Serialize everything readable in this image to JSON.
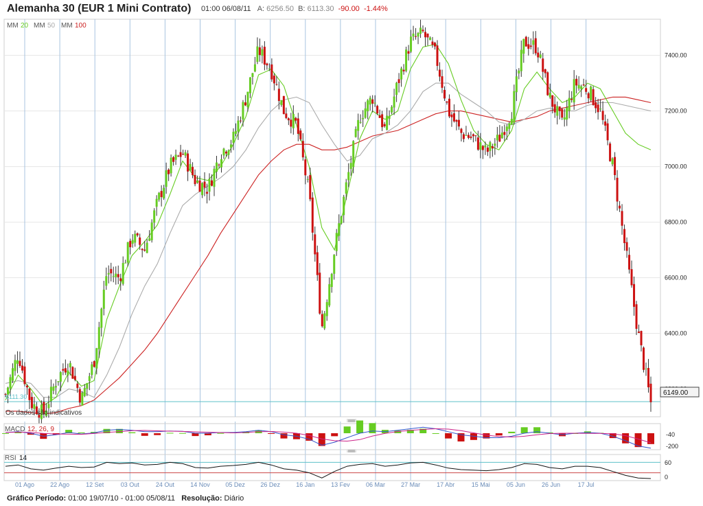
{
  "header": {
    "title": "Alemanha 30 (EUR 1 Mini Contrato)",
    "datetime": "01:00 06/08/11",
    "ask_label": "A:",
    "ask": "6256.50",
    "bid_label": "B:",
    "bid": "6113.30",
    "change": "-90.00",
    "change_pct": "-1.44%"
  },
  "legend": {
    "ma20_label": "MM",
    "ma20_period": "20",
    "ma20_color": "#66cc22",
    "ma50_label": "MM",
    "ma50_period": "50",
    "ma50_color": "#aaaaaa",
    "ma100_label": "MM",
    "ma100_period": "100",
    "ma100_color": "#cc2222"
  },
  "notice": "Os dados são indicativos",
  "low_label": "6111.30",
  "last_price": "6149.00",
  "macd": {
    "label": "MACD",
    "params": "12, 26, 9",
    "ticks": [
      "-40",
      "-200"
    ]
  },
  "rsi": {
    "label": "RSI",
    "period": "14",
    "ticks": [
      "60",
      "0"
    ]
  },
  "footer": {
    "period_label": "Gráfico Período:",
    "period_value": "01:00 19/07/10 - 01:00 05/08/11",
    "resolution_label": "Resolução:",
    "resolution_value": "Diário"
  },
  "colors": {
    "up": "#66cc22",
    "down": "#cc1111",
    "grid": "#a8c4e0",
    "rsi_line": "#111111"
  },
  "chart_data": {
    "type": "candlestick",
    "title": "Alemanha 30 (EUR 1 Mini Contrato)",
    "resolution": "Diário",
    "y_ticks": [
      6200,
      6400,
      6600,
      6800,
      7000,
      7200,
      7400
    ],
    "y_range": [
      6100,
      7530
    ],
    "x_tick_labels": [
      "01 Ago",
      "22 Ago",
      "12 Set",
      "03 Out",
      "24 Out",
      "14 Nov",
      "05 Dez",
      "26 Dez",
      "16 Jan",
      "13 Fev",
      "06 Mar",
      "27 Mar",
      "17 Abr",
      "15 Mai",
      "05 Jun",
      "26 Jun",
      "17 Jul"
    ],
    "close_path": [
      {
        "label": "19 Jul",
        "value": 6180
      },
      {
        "label": "01 Ago",
        "value": 6330
      },
      {
        "label": "11 Ago",
        "value": 6150
      },
      {
        "label": "22 Ago",
        "value": 6110
      },
      {
        "label": "12 Set",
        "value": 6230
      },
      {
        "label": "20 Set",
        "value": 6300
      },
      {
        "label": "03 Out",
        "value": 6160
      },
      {
        "label": "12 Out",
        "value": 6300
      },
      {
        "label": "24 Out",
        "value": 6620
      },
      {
        "label": "02 Nov",
        "value": 6600
      },
      {
        "label": "14 Nov",
        "value": 6750
      },
      {
        "label": "25 Nov",
        "value": 6700
      },
      {
        "label": "30 Nov",
        "value": 6870
      },
      {
        "label": "05 Dez",
        "value": 7000
      },
      {
        "label": "15 Dez",
        "value": 7050
      },
      {
        "label": "26 Dez",
        "value": 6950
      },
      {
        "label": "03 Jan",
        "value": 6920
      },
      {
        "label": "16 Jan",
        "value": 7050
      },
      {
        "label": "25 Jan",
        "value": 7100
      },
      {
        "label": "03 Fev",
        "value": 7250
      },
      {
        "label": "13 Fev",
        "value": 7420
      },
      {
        "label": "20 Fev",
        "value": 7350
      },
      {
        "label": "24 Fev",
        "value": 7200
      },
      {
        "label": "06 Mar",
        "value": 7150
      },
      {
        "label": "10 Mar",
        "value": 6900
      },
      {
        "label": "15 Mar",
        "value": 6420
      },
      {
        "label": "20 Mar",
        "value": 6700
      },
      {
        "label": "27 Mar",
        "value": 6950
      },
      {
        "label": "04 Abr",
        "value": 7180
      },
      {
        "label": "10 Abr",
        "value": 7250
      },
      {
        "label": "17 Abr",
        "value": 7130
      },
      {
        "label": "20 Abr",
        "value": 7300
      },
      {
        "label": "25 Abr",
        "value": 7450
      },
      {
        "label": "02 Mai",
        "value": 7480
      },
      {
        "label": "06 Mai",
        "value": 7400
      },
      {
        "label": "15 Mai",
        "value": 7200
      },
      {
        "label": "22 Mai",
        "value": 7120
      },
      {
        "label": "30 Mai",
        "value": 7100
      },
      {
        "label": "05 Jun",
        "value": 7050
      },
      {
        "label": "12 Jun",
        "value": 7100
      },
      {
        "label": "20 Jun",
        "value": 7200
      },
      {
        "label": "26 Jun",
        "value": 7450
      },
      {
        "label": "01 Jul",
        "value": 7430
      },
      {
        "label": "06 Jul",
        "value": 7250
      },
      {
        "label": "12 Jul",
        "value": 7150
      },
      {
        "label": "17 Jul",
        "value": 7300
      },
      {
        "label": "22 Jul",
        "value": 7280
      },
      {
        "label": "26 Jul",
        "value": 7200
      },
      {
        "label": "28 Jul",
        "value": 7000
      },
      {
        "label": "30 Jul",
        "value": 6700
      },
      {
        "label": "02 Ago",
        "value": 6400
      },
      {
        "label": "05 Ago",
        "value": 6149
      }
    ],
    "series": [
      {
        "name": "MM 20",
        "values": [
          6160,
          6250,
          6200,
          6140,
          6170,
          6260,
          6210,
          6230,
          6450,
          6570,
          6680,
          6730,
          6790,
          6900,
          7020,
          6960,
          6950,
          7000,
          7080,
          7180,
          7330,
          7350,
          7290,
          7150,
          7000,
          6780,
          6700,
          6900,
          7100,
          7200,
          7170,
          7200,
          7350,
          7430,
          7440,
          7370,
          7240,
          7130,
          7080,
          7060,
          7130,
          7280,
          7340,
          7280,
          7230,
          7250,
          7300,
          7280,
          7200,
          7120,
          7080,
          7060
        ]
      },
      {
        "name": "MM 50",
        "values": [
          6220,
          6230,
          6220,
          6170,
          6170,
          6200,
          6190,
          6170,
          6250,
          6350,
          6470,
          6570,
          6650,
          6760,
          6860,
          6900,
          6930,
          6960,
          7000,
          7060,
          7140,
          7200,
          7240,
          7250,
          7230,
          7150,
          7080,
          7020,
          7040,
          7100,
          7120,
          7150,
          7200,
          7270,
          7300,
          7300,
          7260,
          7230,
          7200,
          7160,
          7150,
          7170,
          7200,
          7210,
          7200,
          7200,
          7220,
          7230,
          7230,
          7220,
          7210,
          7200
        ]
      },
      {
        "name": "MM 100",
        "values": [
          6120,
          6120,
          6115,
          6110,
          6115,
          6130,
          6140,
          6160,
          6200,
          6240,
          6290,
          6340,
          6400,
          6470,
          6540,
          6610,
          6680,
          6760,
          6830,
          6900,
          6970,
          7020,
          7060,
          7080,
          7080,
          7060,
          7060,
          7070,
          7090,
          7110,
          7120,
          7130,
          7150,
          7170,
          7190,
          7200,
          7200,
          7190,
          7180,
          7170,
          7160,
          7170,
          7180,
          7200,
          7210,
          7220,
          7230,
          7240,
          7250,
          7250,
          7240,
          7230
        ]
      }
    ],
    "macd": {
      "name": "MACD 12, 26, 9",
      "values": [
        10,
        20,
        0,
        -40,
        -20,
        10,
        -10,
        5,
        40,
        50,
        40,
        20,
        20,
        30,
        25,
        0,
        0,
        10,
        10,
        20,
        40,
        20,
        -20,
        -40,
        -80,
        -160,
        -120,
        -60,
        0,
        30,
        20,
        40,
        60,
        80,
        60,
        20,
        -20,
        -40,
        -60,
        -60,
        -40,
        0,
        20,
        0,
        -20,
        0,
        10,
        0,
        -40,
        -100,
        -170,
        -200
      ]
    },
    "rsi": {
      "name": "RSI 14",
      "values": [
        55,
        60,
        45,
        40,
        48,
        55,
        50,
        52,
        70,
        65,
        68,
        60,
        62,
        70,
        65,
        50,
        48,
        55,
        58,
        62,
        70,
        60,
        45,
        40,
        30,
        10,
        35,
        55,
        62,
        65,
        55,
        60,
        68,
        70,
        60,
        48,
        42,
        40,
        38,
        42,
        50,
        65,
        62,
        50,
        45,
        55,
        55,
        50,
        35,
        20,
        10,
        8
      ]
    }
  }
}
